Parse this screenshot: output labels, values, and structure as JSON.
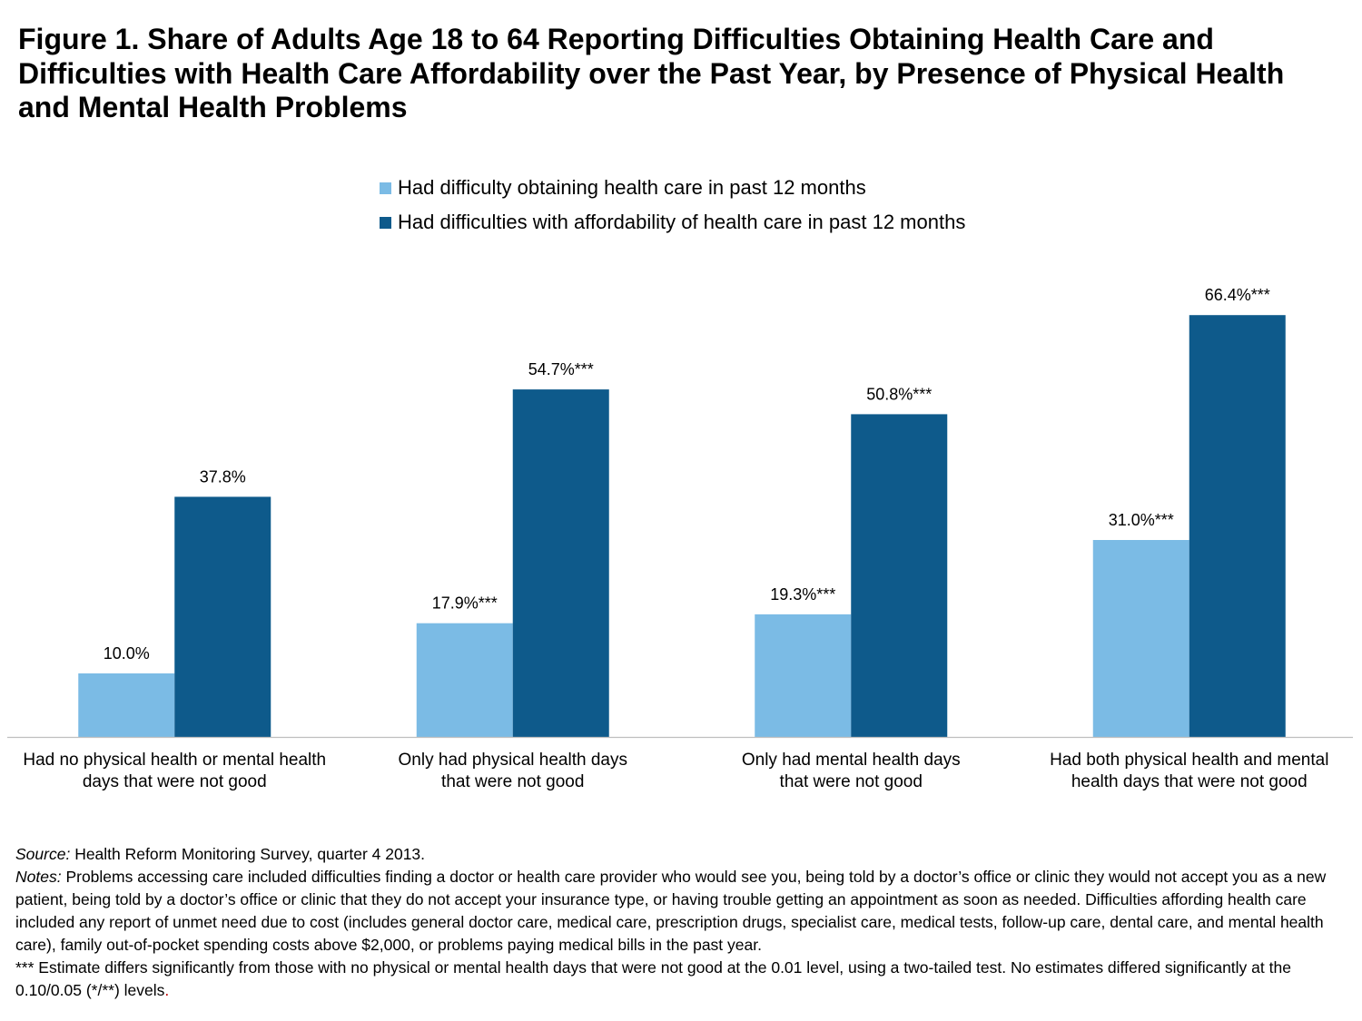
{
  "chart_data": {
    "type": "bar",
    "title": "Figure 1. Share of Adults Age 18 to 64 Reporting Difficulties Obtaining Health Care and\nDifficulties with Health Care Affordability over the Past Year, by Presence of Physical Health\nand Mental Health Problems",
    "categories": [
      "Had no physical health or mental health\ndays that were not good",
      "Only had physical health days\nthat were not good",
      "Only had mental health days\nthat were not good",
      "Had both physical health and mental\nhealth days that were not good"
    ],
    "series": [
      {
        "name": "Had difficulty obtaining health care in past 12 months",
        "values": [
          10.0,
          17.9,
          19.3,
          31.0
        ],
        "labels": [
          "10.0%",
          "17.9%***",
          "19.3%***",
          "31.0%***"
        ],
        "color": "#7BBBE5"
      },
      {
        "name": "Had difficulties with affordability of health care in past 12 months",
        "values": [
          37.8,
          54.7,
          50.8,
          66.4
        ],
        "labels": [
          "37.8%",
          "54.7%***",
          "50.8%***",
          "66.4%***"
        ],
        "color": "#0E5A8B"
      }
    ],
    "legend": "top-center",
    "grid": false
  },
  "footnotes": {
    "source_label": "Source:",
    "source_text": "Health Reform Monitoring Survey, quarter 4 2013.",
    "notes_label": "Notes:",
    "notes_text": "Problems accessing care included difficulties finding a doctor or health care provider who would see you, being told by a doctor’s office or clinic they would not accept you as a new patient, being told by a doctor’s office or clinic that they do not accept your insurance type, or having trouble getting an appointment as soon as needed. Difficulties affording health care included any report of unmet need due to cost (includes general doctor care, medical care, prescription drugs, specialist care, medical tests, follow-up care, dental care, and mental health care), family out-of-pocket spending costs above $2,000, or problems paying medical bills in the past year.",
    "significance_note": "*** Estimate differs significantly from those with no physical or mental health days that were not good at the 0.01 level, using a two-tailed test. No estimates differed significantly at the 0.10/0.05 (*/**) levels",
    "significance_note_end": "."
  },
  "colors": {
    "axis": "#BFBFBF",
    "text": "#000000",
    "end_mark": "#C00000"
  }
}
